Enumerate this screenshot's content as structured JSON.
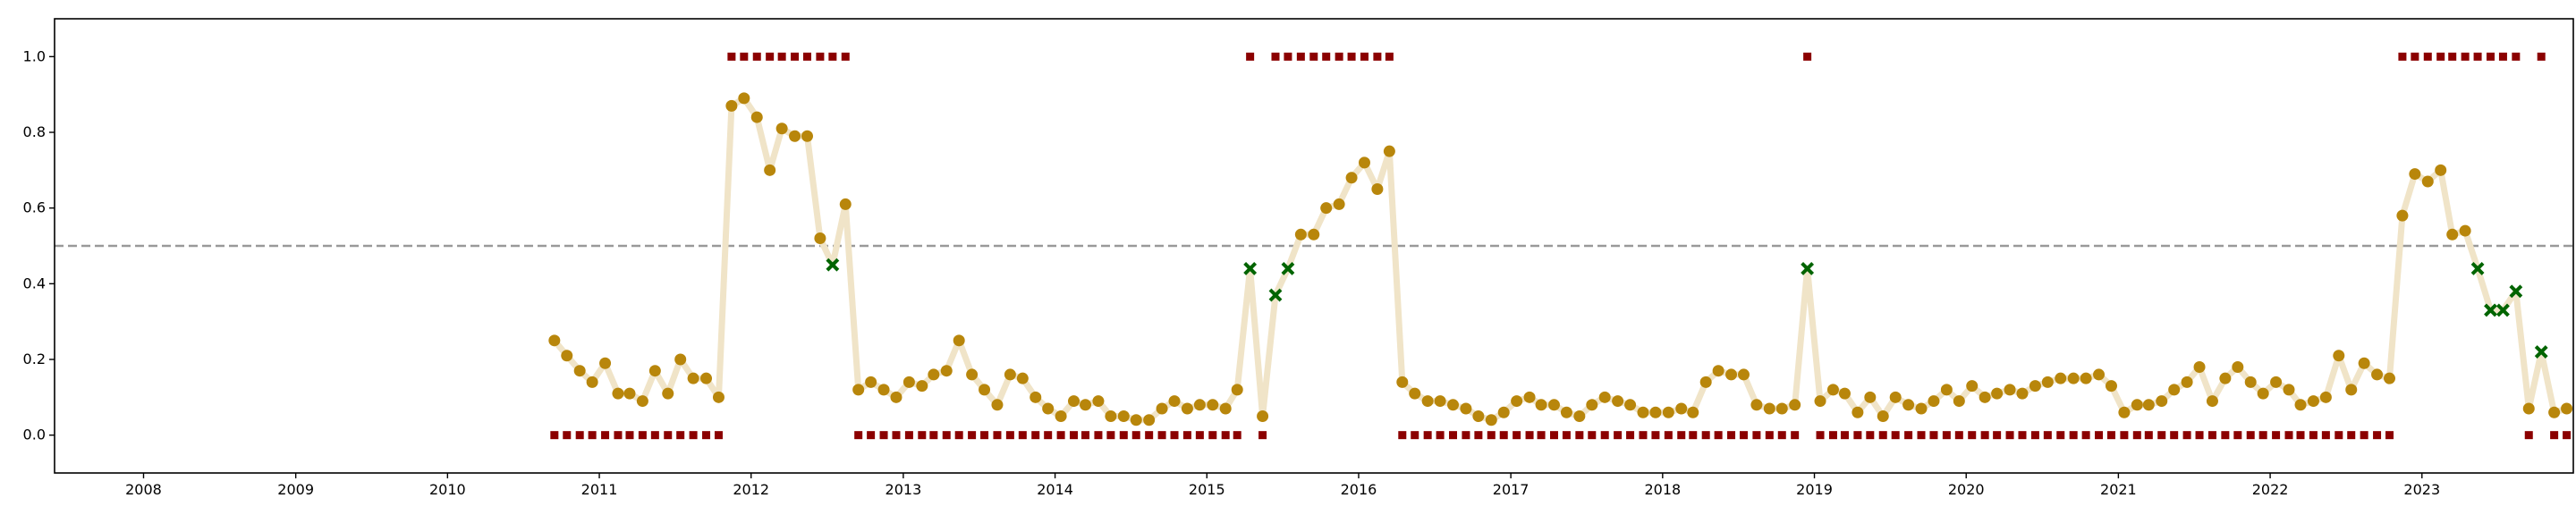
{
  "chart_data": {
    "type": "line",
    "title": "",
    "xlabel": "",
    "ylabel": "",
    "xlim": [
      "2007-06-01",
      "2023-12-31"
    ],
    "ylim": [
      -0.1,
      1.1
    ],
    "x_ticks": [
      "2008",
      "2009",
      "2010",
      "2011",
      "2012",
      "2013",
      "2014",
      "2015",
      "2016",
      "2017",
      "2018",
      "2019",
      "2020",
      "2021",
      "2022",
      "2023"
    ],
    "y_ticks": [
      "0.0",
      "0.2",
      "0.4",
      "0.6",
      "0.8",
      "1.0"
    ],
    "threshold": 0.5,
    "grid": false,
    "legend": "none",
    "colors": {
      "line": "#f0e4c8",
      "point": "#b8860b",
      "cross": "#006400",
      "label_marker": "#8b0000",
      "threshold": "#999999"
    },
    "series": [
      {
        "x": [
          "2010-09-15",
          "2010-10-15",
          "2010-11-15",
          "2010-12-15",
          "2011-01-15",
          "2011-02-15",
          "2011-03-15",
          "2011-04-15",
          "2011-05-15",
          "2011-06-15",
          "2011-07-15",
          "2011-08-15",
          "2011-09-15",
          "2011-10-15",
          "2011-11-15",
          "2011-12-15",
          "2012-01-15",
          "2012-02-15",
          "2012-03-15",
          "2012-04-15",
          "2012-05-15",
          "2012-06-15",
          "2012-07-15",
          "2012-08-15",
          "2012-09-15",
          "2012-10-15",
          "2012-11-15",
          "2012-12-15",
          "2013-01-15",
          "2013-02-15",
          "2013-03-15",
          "2013-04-15",
          "2013-05-15",
          "2013-06-15",
          "2013-07-15",
          "2013-08-15",
          "2013-09-15",
          "2013-10-15",
          "2013-11-15",
          "2013-12-15",
          "2014-01-15",
          "2014-02-15",
          "2014-03-15",
          "2014-04-15",
          "2014-05-15",
          "2014-06-15",
          "2014-07-15",
          "2014-08-15",
          "2014-09-15",
          "2014-10-15",
          "2014-11-15",
          "2014-12-15",
          "2015-01-15",
          "2015-02-15",
          "2015-03-15",
          "2015-04-15",
          "2015-05-15",
          "2015-06-15",
          "2015-07-15",
          "2015-08-15",
          "2015-09-15",
          "2015-10-15",
          "2015-11-15",
          "2015-12-15",
          "2016-01-15",
          "2016-02-15",
          "2016-03-15",
          "2016-04-15",
          "2016-05-15",
          "2016-06-15",
          "2016-07-15",
          "2016-08-15",
          "2016-09-15",
          "2016-10-15",
          "2016-11-15",
          "2016-12-15",
          "2017-01-15",
          "2017-02-15",
          "2017-03-15",
          "2017-04-15",
          "2017-05-15",
          "2017-06-15",
          "2017-07-15",
          "2017-08-15",
          "2017-09-15",
          "2017-10-15",
          "2017-11-15",
          "2017-12-15",
          "2018-01-15",
          "2018-02-15",
          "2018-03-15",
          "2018-04-15",
          "2018-05-15",
          "2018-06-15",
          "2018-07-15",
          "2018-08-15",
          "2018-09-15",
          "2018-10-15",
          "2018-11-15",
          "2018-12-15",
          "2019-01-15",
          "2019-02-15",
          "2019-03-15",
          "2019-04-15",
          "2019-05-15",
          "2019-06-15",
          "2019-07-15",
          "2019-08-15",
          "2019-09-15",
          "2019-10-15",
          "2019-11-15",
          "2019-12-15",
          "2020-01-15",
          "2020-02-15",
          "2020-03-15",
          "2020-04-15",
          "2020-05-15",
          "2020-06-15",
          "2020-07-15",
          "2020-08-15",
          "2020-09-15",
          "2020-10-15",
          "2020-11-15",
          "2020-12-15",
          "2021-01-15",
          "2021-02-15",
          "2021-03-15",
          "2021-04-15",
          "2021-05-15",
          "2021-06-15",
          "2021-07-15",
          "2021-08-15",
          "2021-09-15",
          "2021-10-15",
          "2021-11-15",
          "2021-12-15",
          "2022-01-15",
          "2022-02-15",
          "2022-03-15",
          "2022-04-15",
          "2022-05-15",
          "2022-06-15",
          "2022-07-15",
          "2022-08-15",
          "2022-09-15",
          "2022-10-15",
          "2022-11-15",
          "2022-12-15",
          "2023-01-15",
          "2023-02-15",
          "2023-03-15",
          "2023-04-15",
          "2023-05-15",
          "2023-06-15",
          "2023-07-15",
          "2023-08-15",
          "2023-09-15",
          "2023-10-15",
          "2023-11-15",
          "2023-12-15"
        ],
        "values": [
          0.25,
          0.21,
          0.17,
          0.14,
          0.19,
          0.11,
          0.11,
          0.09,
          0.17,
          0.11,
          0.2,
          0.15,
          0.15,
          0.1,
          0.87,
          0.89,
          0.84,
          0.7,
          0.81,
          0.79,
          0.79,
          0.52,
          0.45,
          0.61,
          0.12,
          0.14,
          0.12,
          0.1,
          0.14,
          0.13,
          0.16,
          0.17,
          0.25,
          0.16,
          0.12,
          0.08,
          0.16,
          0.15,
          0.1,
          0.07,
          0.05,
          0.09,
          0.08,
          0.09,
          0.05,
          0.05,
          0.04,
          0.04,
          0.07,
          0.09,
          0.07,
          0.08,
          0.08,
          0.07,
          0.12,
          0.44,
          0.05,
          0.37,
          0.44,
          0.53,
          0.53,
          0.6,
          0.61,
          0.68,
          0.72,
          0.65,
          0.75,
          0.14,
          0.11,
          0.09,
          0.09,
          0.08,
          0.07,
          0.05,
          0.04,
          0.06,
          0.09,
          0.1,
          0.08,
          0.08,
          0.06,
          0.05,
          0.08,
          0.1,
          0.09,
          0.08,
          0.06,
          0.06,
          0.06,
          0.07,
          0.06,
          0.14,
          0.17,
          0.16,
          0.16,
          0.08,
          0.07,
          0.07,
          0.08,
          0.44,
          0.09,
          0.12,
          0.11,
          0.06,
          0.1,
          0.05,
          0.1,
          0.08,
          0.07,
          0.09,
          0.12,
          0.09,
          0.13,
          0.1,
          0.11,
          0.12,
          0.11,
          0.13,
          0.14,
          0.15,
          0.15,
          0.15,
          0.16,
          0.13,
          0.06,
          0.08,
          0.08,
          0.09,
          0.12,
          0.14,
          0.18,
          0.09,
          0.15,
          0.18,
          0.14,
          0.11,
          0.14,
          0.12,
          0.08,
          0.09,
          0.1,
          0.21,
          0.12,
          0.19,
          0.16,
          0.15,
          0.58,
          0.69,
          0.67,
          0.7,
          0.53,
          0.54,
          0.44,
          0.33,
          0.33,
          0.38,
          0.07,
          0.22,
          0.06,
          0.07
        ],
        "cross_indices": [
          22,
          55,
          57,
          58,
          99,
          152,
          153,
          154,
          155,
          157
        ],
        "labels": [
          0,
          0,
          0,
          0,
          0,
          0,
          0,
          0,
          0,
          0,
          0,
          0,
          0,
          0,
          1,
          1,
          1,
          1,
          1,
          1,
          1,
          1,
          1,
          1,
          0,
          0,
          0,
          0,
          0,
          0,
          0,
          0,
          0,
          0,
          0,
          0,
          0,
          0,
          0,
          0,
          0,
          0,
          0,
          0,
          0,
          0,
          0,
          0,
          0,
          0,
          0,
          0,
          0,
          0,
          0,
          1,
          0,
          1,
          1,
          1,
          1,
          1,
          1,
          1,
          1,
          1,
          1,
          0,
          0,
          0,
          0,
          0,
          0,
          0,
          0,
          0,
          0,
          0,
          0,
          0,
          0,
          0,
          0,
          0,
          0,
          0,
          0,
          0,
          0,
          0,
          0,
          0,
          0,
          0,
          0,
          0,
          0,
          0,
          0,
          1,
          0,
          0,
          0,
          0,
          0,
          0,
          0,
          0,
          0,
          0,
          0,
          0,
          0,
          0,
          0,
          0,
          0,
          0,
          0,
          0,
          0,
          0,
          0,
          0,
          0,
          0,
          0,
          0,
          0,
          0,
          0,
          0,
          0,
          0,
          0,
          0,
          0,
          0,
          0,
          0,
          0,
          0,
          0,
          0,
          0,
          0,
          1,
          1,
          1,
          1,
          1,
          1,
          1,
          1,
          1,
          1,
          0,
          1,
          0,
          0
        ]
      }
    ]
  }
}
